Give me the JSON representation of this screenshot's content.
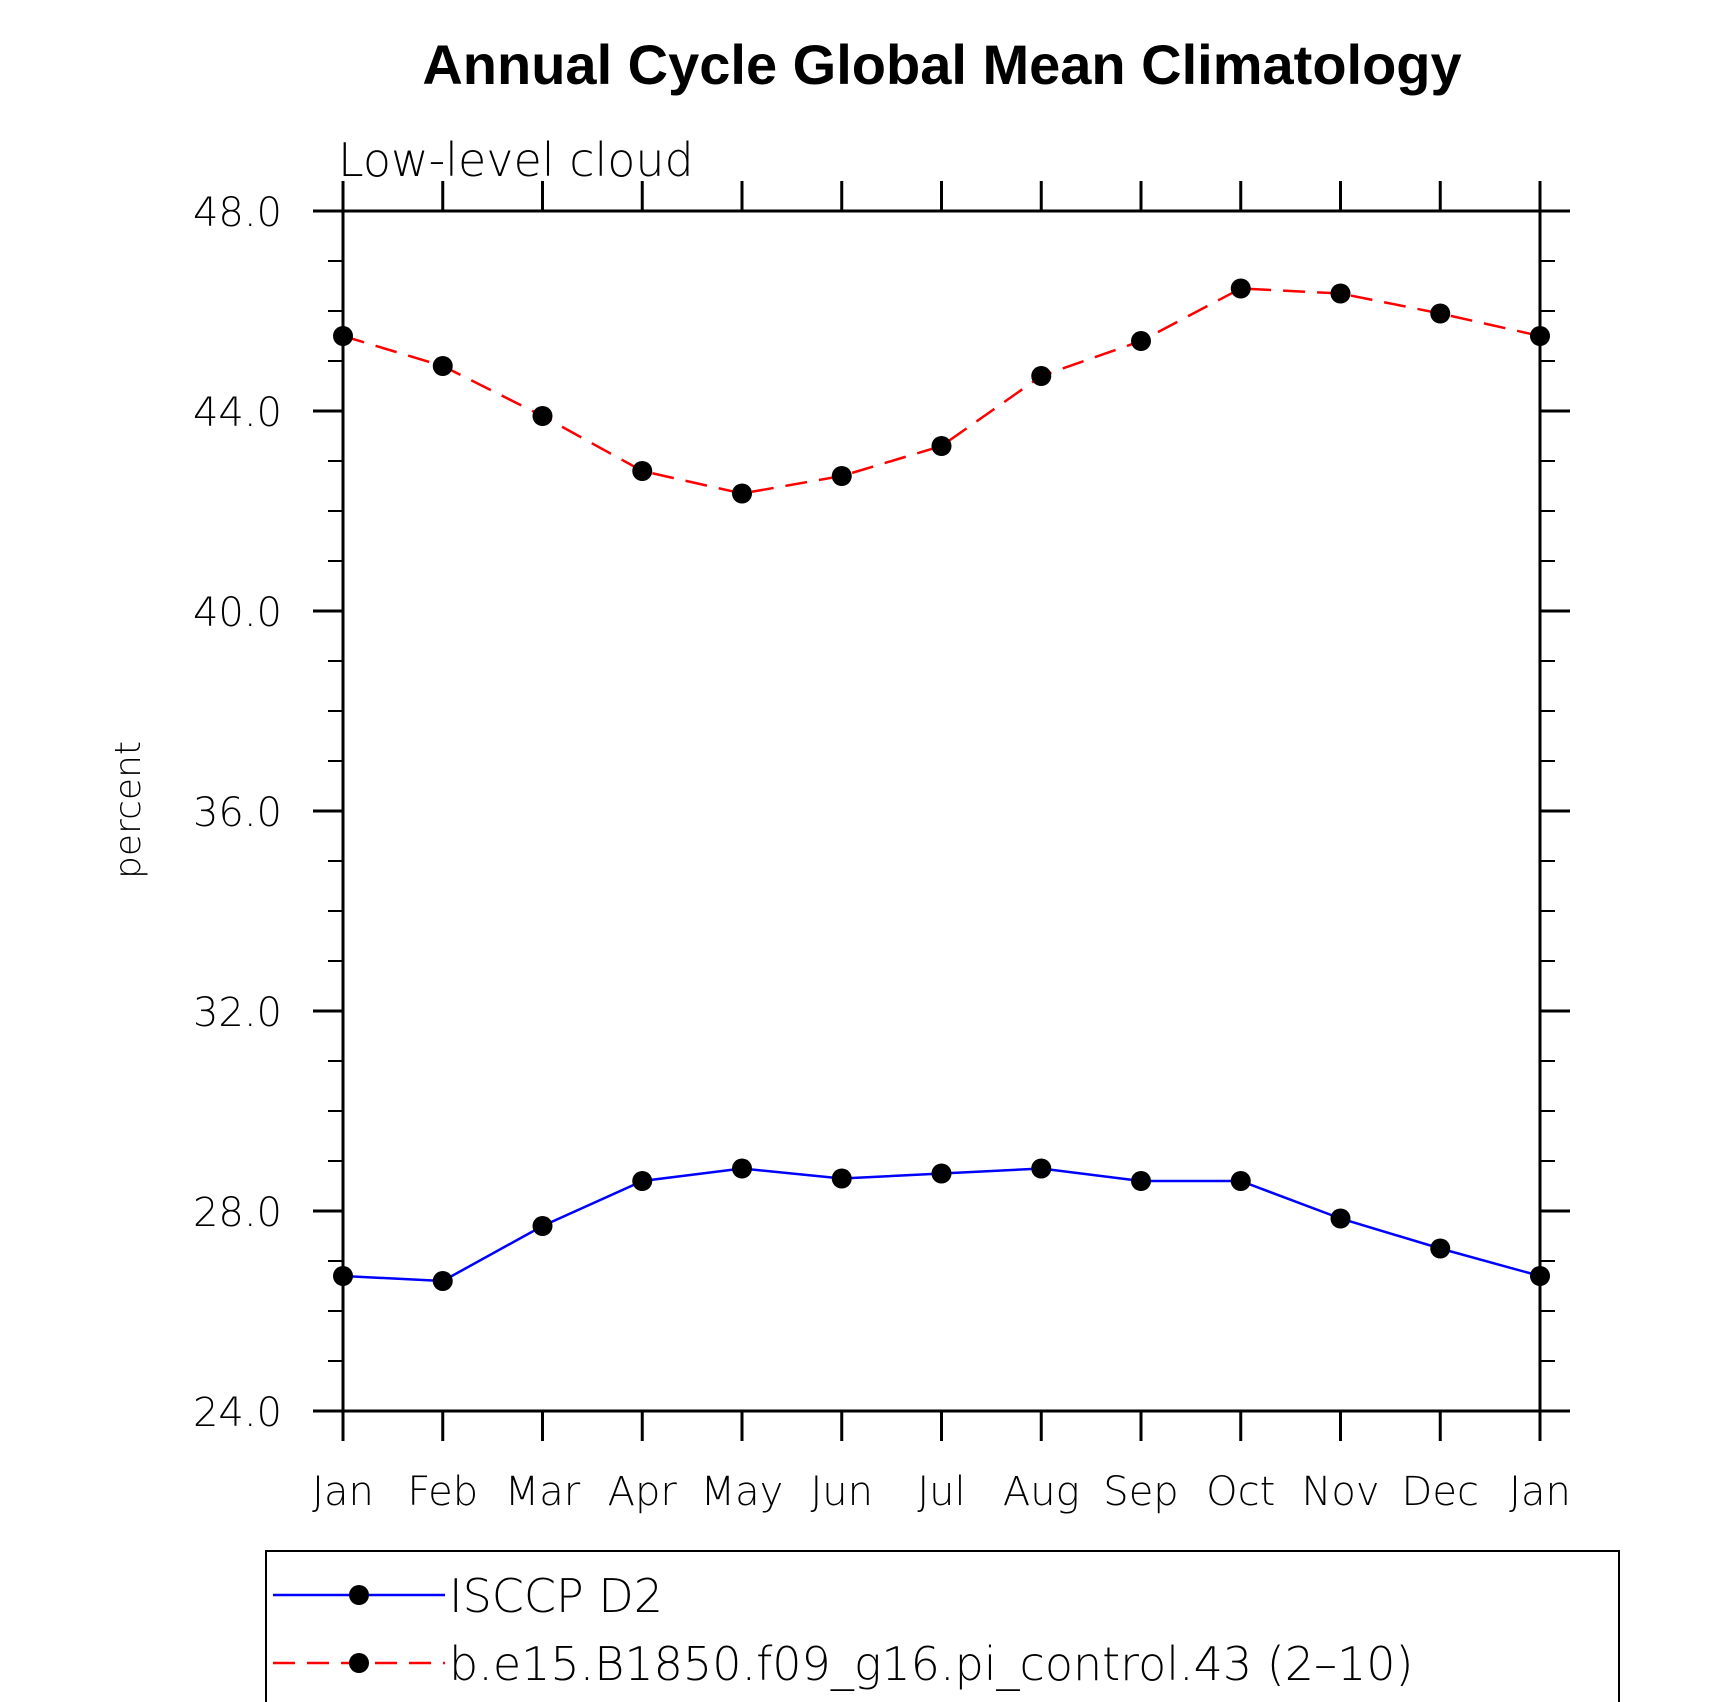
{
  "chart_data": {
    "type": "line",
    "title": "Annual Cycle Global Mean Climatology",
    "subtitle": "Low-level cloud",
    "xlabel": "",
    "ylabel": "percent",
    "categories": [
      "Jan",
      "Feb",
      "Mar",
      "Apr",
      "May",
      "Jun",
      "Jul",
      "Aug",
      "Sep",
      "Oct",
      "Nov",
      "Dec",
      "Jan"
    ],
    "ylim": [
      24.0,
      48.0
    ],
    "y_ticks": [
      "24.0",
      "28.0",
      "32.0",
      "36.0",
      "40.0",
      "44.0",
      "48.0"
    ],
    "y_tick_values": [
      24,
      28,
      32,
      36,
      40,
      44,
      48
    ],
    "y_minor_step": 1,
    "series": [
      {
        "name": "ISCCP D2",
        "color": "#0000ff",
        "dash": "solid",
        "marker": "filled-circle",
        "values": [
          26.7,
          26.6,
          27.7,
          28.6,
          28.85,
          28.65,
          28.75,
          28.85,
          28.6,
          28.6,
          27.85,
          27.25,
          26.7
        ]
      },
      {
        "name": "b.e15.B1850.f09_g16.pi_control.43 (2–10)",
        "color": "#ff0000",
        "dash": "dashed",
        "marker": "filled-circle",
        "values": [
          45.5,
          44.9,
          43.9,
          42.8,
          42.35,
          42.7,
          43.3,
          44.7,
          45.4,
          46.45,
          46.35,
          45.95,
          45.5
        ]
      }
    ],
    "legend_position": "bottom"
  }
}
